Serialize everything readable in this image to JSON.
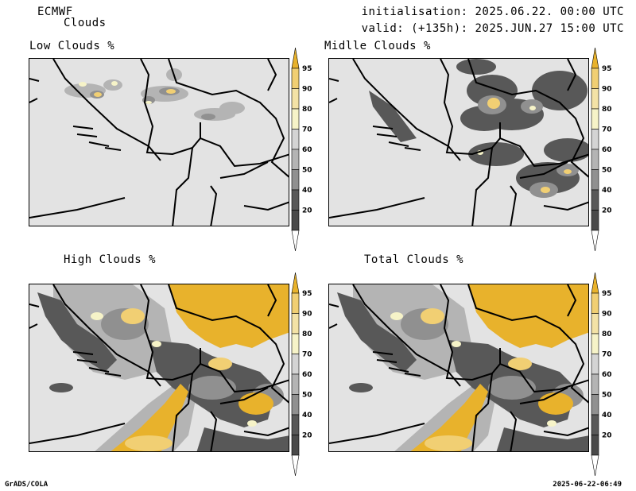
{
  "header": {
    "model": "ECMWF",
    "field": "Clouds",
    "init": "initialisation: 2025.06.22. 00:00 UTC",
    "valid": "valid: (+135h): 2025.JUN.27 15:00 UTC"
  },
  "panels": [
    {
      "id": "low",
      "title": "Low Clouds %"
    },
    {
      "id": "mid",
      "title": "Midlle Clouds %"
    },
    {
      "id": "high",
      "title": "High Clouds %"
    },
    {
      "id": "total",
      "title": "Total Clouds %"
    }
  ],
  "colorbar": {
    "levels": [
      "95",
      "90",
      "80",
      "70",
      "60",
      "50",
      "40",
      "20"
    ],
    "colors": [
      "#e8b22c",
      "#f1cf73",
      "#f3e2a6",
      "#f6f3c8",
      "#d4d4d4",
      "#b4b4b4",
      "#909090",
      "#585858",
      "#4a4a4a",
      "#ffffff"
    ]
  },
  "footer": {
    "left": "GrADS/COLA",
    "right": "2025-06-22-06:49"
  }
}
